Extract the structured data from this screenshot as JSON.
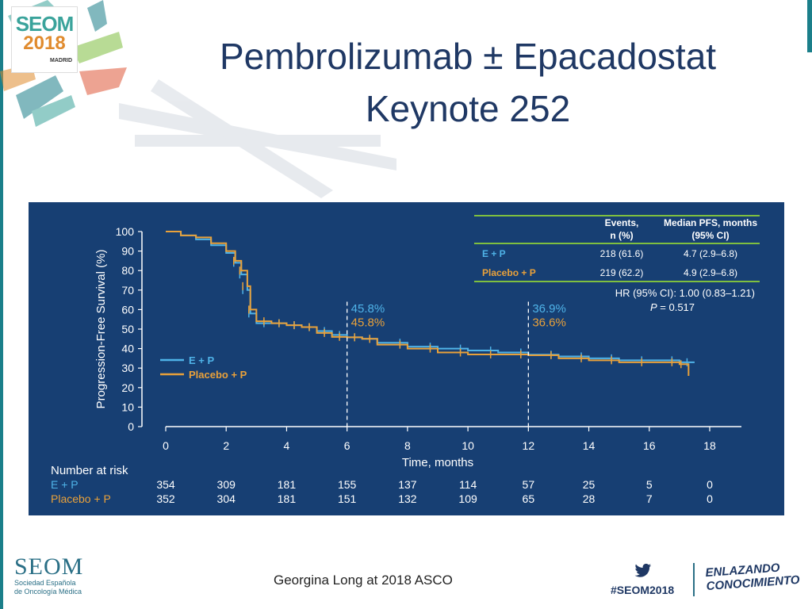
{
  "slide": {
    "title_line1": "Pembrolizumab ± Epacadostat",
    "title_line2": "Keynote 252",
    "credit": "Georgina Long at 2018 ASCO"
  },
  "logo": {
    "line1": "SEOM",
    "line2": "2018",
    "line3": "MADRID"
  },
  "footer": {
    "org_name": "SEOM",
    "org_sub1": "Sociedad Española",
    "org_sub2": "de Oncología Médica",
    "hashtag": "#SEOM2018",
    "slogan1": "ENLAZANDO",
    "slogan2": "CONOCIMIENTO",
    "twitter_icon": "twitter-bird-icon"
  },
  "colors": {
    "panel": "#173f73",
    "ep": "#4fb3e8",
    "placebo": "#e9a13a",
    "title": "#1f3864",
    "table_rule": "#7fbf3f"
  },
  "table": {
    "col_events": "Events,",
    "col_events2": "n (%)",
    "col_median": "Median PFS, months",
    "col_median2": "(95% CI)",
    "rows": [
      {
        "label": "E + P",
        "events": "218 (61.6)",
        "median": "4.7 (2.9–6.8)"
      },
      {
        "label": "Placebo + P",
        "events": "219 (62.2)",
        "median": "4.9 (2.9–6.8)"
      }
    ],
    "hr": "HR (95% CI): 1.00 (0.83–1.21)",
    "p_label": "P",
    "p_value": " = 0.517"
  },
  "chart_data": {
    "type": "line",
    "ylabel": "Progression-Free Survival (%)",
    "xlabel": "Time, months",
    "xlim": [
      0,
      18
    ],
    "ylim": [
      0,
      100
    ],
    "x_ticks": [
      0,
      2,
      4,
      6,
      8,
      10,
      12,
      14,
      16,
      18
    ],
    "y_ticks": [
      0,
      10,
      20,
      30,
      40,
      50,
      60,
      70,
      80,
      90,
      100
    ],
    "legend_position": "left",
    "series": [
      {
        "name": "E + P",
        "color": "#4fb3e8",
        "x": [
          0,
          0.5,
          1.0,
          1.5,
          2.0,
          2.3,
          2.5,
          2.7,
          2.8,
          3.0,
          3.5,
          4.0,
          4.5,
          5.0,
          5.5,
          6.0,
          6.5,
          7.0,
          8.0,
          9.0,
          10.0,
          11.0,
          12.0,
          13.0,
          14.0,
          15.0,
          16.0,
          17.0,
          17.5
        ],
        "y": [
          100,
          98,
          96,
          93,
          89,
          84,
          78,
          70,
          58,
          53,
          53,
          52,
          51,
          49,
          47,
          45.8,
          45,
          43,
          41,
          40,
          39,
          38,
          36.9,
          36,
          35,
          34,
          34,
          33,
          33
        ]
      },
      {
        "name": "Placebo + P",
        "color": "#e9a13a",
        "x": [
          0,
          0.5,
          1.0,
          1.5,
          2.0,
          2.3,
          2.5,
          2.7,
          2.8,
          3.0,
          3.5,
          4.0,
          4.5,
          5.0,
          5.5,
          6.0,
          6.5,
          7.0,
          8.0,
          9.0,
          10.0,
          11.0,
          12.0,
          13.0,
          14.0,
          15.0,
          16.0,
          17.0,
          17.3
        ],
        "y": [
          100,
          98,
          97,
          94,
          90,
          85,
          80,
          72,
          60,
          54,
          53,
          52,
          51,
          48,
          46,
          45.8,
          45,
          42,
          40,
          38,
          37,
          37,
          36.6,
          35,
          34,
          33,
          33,
          32,
          26
        ]
      }
    ],
    "annotations": [
      {
        "x": 6,
        "ep_label": "45.8%",
        "pl_label": "45.8%"
      },
      {
        "x": 12,
        "ep_label": "36.9%",
        "pl_label": "36.6%"
      }
    ],
    "risk_table": {
      "title": "Number at risk",
      "times": [
        0,
        2,
        4,
        6,
        8,
        10,
        12,
        14,
        16,
        18
      ],
      "rows": [
        {
          "label": "E + P",
          "values": [
            "354",
            "309",
            "181",
            "155",
            "137",
            "114",
            "57",
            "25",
            "5",
            "0"
          ]
        },
        {
          "label": "Placebo + P",
          "values": [
            "352",
            "304",
            "181",
            "151",
            "132",
            "109",
            "65",
            "28",
            "7",
            "0"
          ]
        }
      ]
    }
  }
}
